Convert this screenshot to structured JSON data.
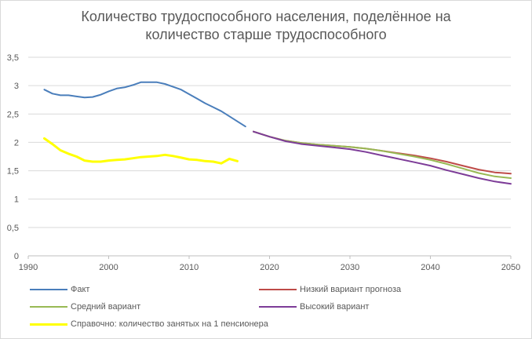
{
  "chart_data": {
    "type": "line",
    "title": "Количество трудоспособного населения, поделённое на количество старше трудоспособного",
    "title_lines": [
      "Количество трудоспособного населения, поделённое на",
      "количество старше трудоспособного"
    ],
    "xlabel": "",
    "ylabel": "",
    "xlim": [
      1990,
      2050
    ],
    "ylim": [
      0,
      3.5
    ],
    "x_ticks": [
      "1990",
      "2000",
      "2010",
      "2020",
      "2030",
      "2040",
      "2050"
    ],
    "y_ticks": [
      "0",
      "0,5",
      "1",
      "1,5",
      "2",
      "2,5",
      "3",
      "3,5"
    ],
    "grid": {
      "horizontal": true,
      "vertical": false
    },
    "legend_position": "bottom",
    "series": [
      {
        "name": "Факт",
        "color": "#4a7ebb",
        "points": [
          [
            1992,
            2.93
          ],
          [
            1993,
            2.86
          ],
          [
            1994,
            2.83
          ],
          [
            1995,
            2.83
          ],
          [
            1996,
            2.81
          ],
          [
            1997,
            2.79
          ],
          [
            1998,
            2.8
          ],
          [
            1999,
            2.84
          ],
          [
            2000,
            2.9
          ],
          [
            2001,
            2.95
          ],
          [
            2002,
            2.97
          ],
          [
            2003,
            3.01
          ],
          [
            2004,
            3.06
          ],
          [
            2005,
            3.06
          ],
          [
            2006,
            3.06
          ],
          [
            2007,
            3.03
          ],
          [
            2008,
            2.98
          ],
          [
            2009,
            2.93
          ],
          [
            2010,
            2.85
          ],
          [
            2011,
            2.77
          ],
          [
            2012,
            2.69
          ],
          [
            2013,
            2.62
          ],
          [
            2014,
            2.55
          ],
          [
            2015,
            2.46
          ],
          [
            2016,
            2.37
          ],
          [
            2017,
            2.28
          ]
        ]
      },
      {
        "name": "Низкий вариант прогноза",
        "color": "#be4b48",
        "points": [
          [
            2018,
            2.19
          ],
          [
            2020,
            2.1
          ],
          [
            2022,
            2.03
          ],
          [
            2024,
            1.99
          ],
          [
            2026,
            1.96
          ],
          [
            2028,
            1.94
          ],
          [
            2030,
            1.92
          ],
          [
            2032,
            1.89
          ],
          [
            2034,
            1.85
          ],
          [
            2036,
            1.81
          ],
          [
            2038,
            1.77
          ],
          [
            2040,
            1.72
          ],
          [
            2042,
            1.66
          ],
          [
            2044,
            1.59
          ],
          [
            2046,
            1.52
          ],
          [
            2048,
            1.47
          ],
          [
            2050,
            1.45
          ]
        ]
      },
      {
        "name": "Средний вариант",
        "color": "#98b954",
        "points": [
          [
            2018,
            2.19
          ],
          [
            2020,
            2.1
          ],
          [
            2022,
            2.03
          ],
          [
            2024,
            1.99
          ],
          [
            2026,
            1.96
          ],
          [
            2028,
            1.94
          ],
          [
            2030,
            1.92
          ],
          [
            2032,
            1.89
          ],
          [
            2034,
            1.85
          ],
          [
            2036,
            1.8
          ],
          [
            2038,
            1.75
          ],
          [
            2040,
            1.69
          ],
          [
            2042,
            1.62
          ],
          [
            2044,
            1.54
          ],
          [
            2046,
            1.46
          ],
          [
            2048,
            1.4
          ],
          [
            2050,
            1.37
          ]
        ]
      },
      {
        "name": "Высокий вариант",
        "color": "#7d3c98",
        "points": [
          [
            2018,
            2.19
          ],
          [
            2020,
            2.1
          ],
          [
            2022,
            2.02
          ],
          [
            2024,
            1.97
          ],
          [
            2026,
            1.94
          ],
          [
            2028,
            1.91
          ],
          [
            2030,
            1.88
          ],
          [
            2032,
            1.83
          ],
          [
            2034,
            1.77
          ],
          [
            2036,
            1.71
          ],
          [
            2038,
            1.65
          ],
          [
            2040,
            1.59
          ],
          [
            2042,
            1.51
          ],
          [
            2044,
            1.44
          ],
          [
            2046,
            1.37
          ],
          [
            2048,
            1.31
          ],
          [
            2050,
            1.27
          ]
        ]
      },
      {
        "name": "Справочно: количество занятых на 1 пенсионера",
        "color": "#ffff00",
        "points": [
          [
            1992,
            2.07
          ],
          [
            1993,
            1.97
          ],
          [
            1994,
            1.86
          ],
          [
            1995,
            1.8
          ],
          [
            1996,
            1.75
          ],
          [
            1997,
            1.68
          ],
          [
            1998,
            1.66
          ],
          [
            1999,
            1.66
          ],
          [
            2000,
            1.68
          ],
          [
            2001,
            1.69
          ],
          [
            2002,
            1.7
          ],
          [
            2003,
            1.72
          ],
          [
            2004,
            1.74
          ],
          [
            2005,
            1.75
          ],
          [
            2006,
            1.76
          ],
          [
            2007,
            1.78
          ],
          [
            2008,
            1.76
          ],
          [
            2009,
            1.73
          ],
          [
            2010,
            1.7
          ],
          [
            2011,
            1.69
          ],
          [
            2012,
            1.67
          ],
          [
            2013,
            1.66
          ],
          [
            2014,
            1.63
          ],
          [
            2015,
            1.71
          ],
          [
            2016,
            1.67
          ]
        ]
      }
    ]
  }
}
